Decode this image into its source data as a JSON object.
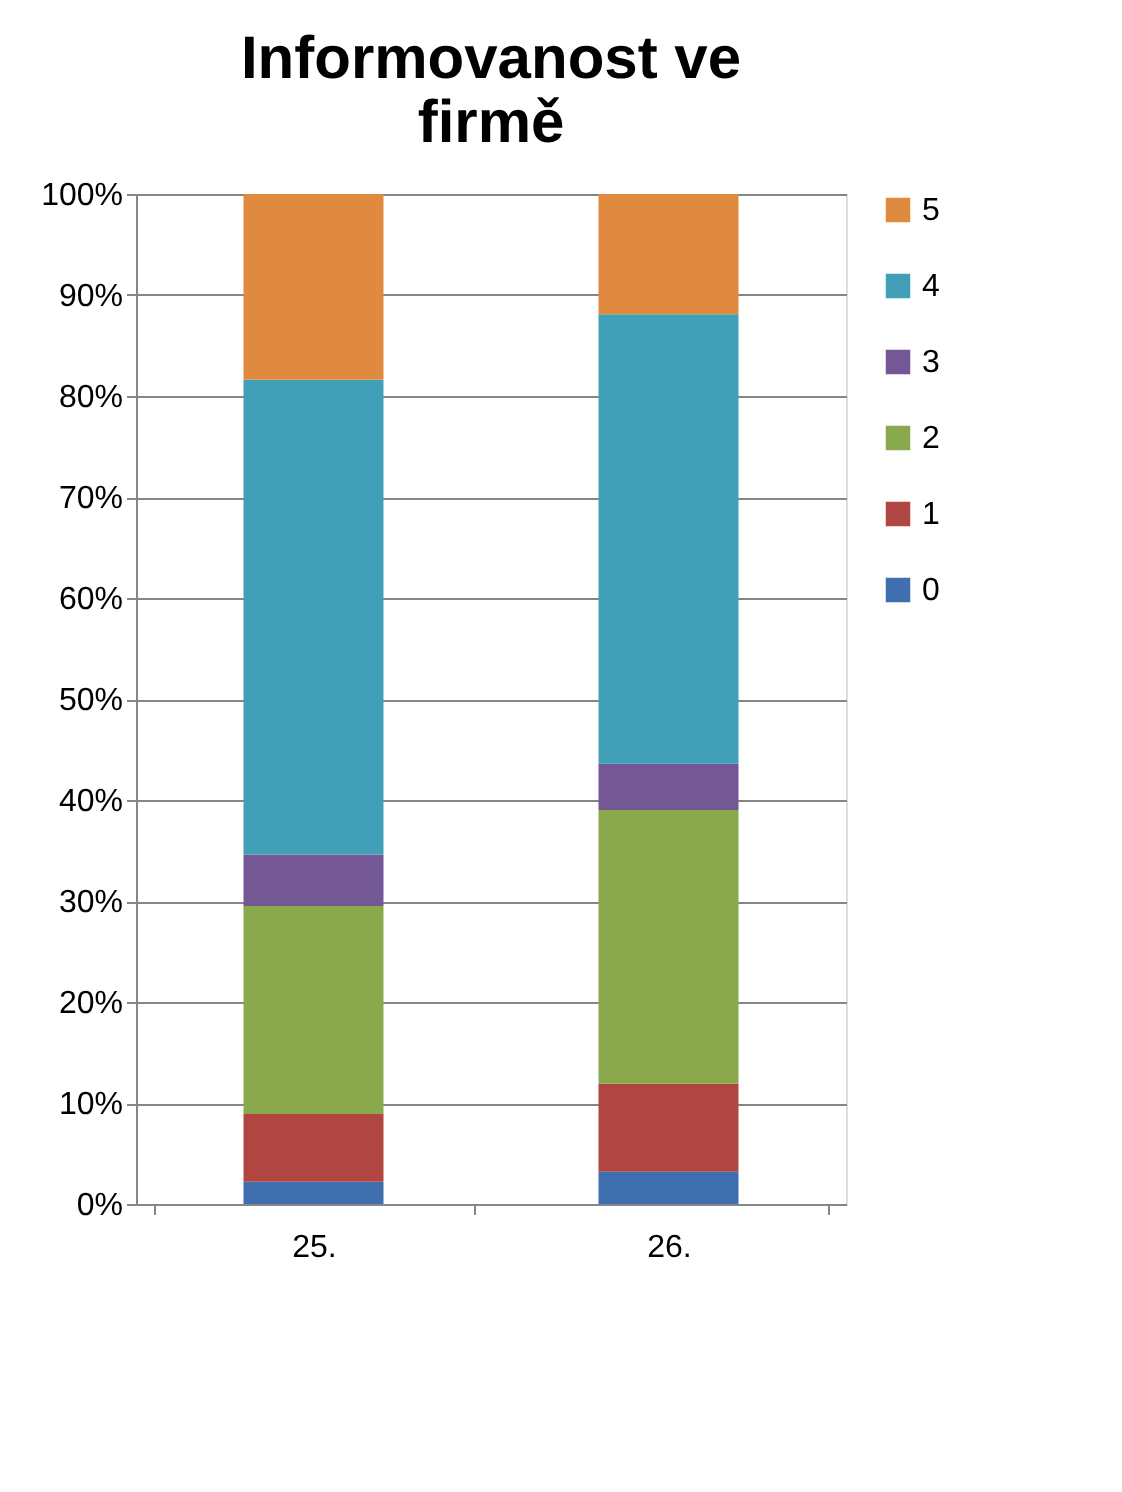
{
  "chart_data": {
    "type": "bar",
    "title": "Informovanost ve firmě",
    "categories": [
      "25.",
      "26."
    ],
    "stacked": true,
    "series": [
      {
        "name": "0",
        "color": "#3f6fae",
        "values": [
          2.2,
          3.2
        ]
      },
      {
        "name": "1",
        "color": "#b04542",
        "values": [
          6.7,
          8.7
        ]
      },
      {
        "name": "2",
        "color": "#8aa84c",
        "values": [
          20.6,
          27.1
        ]
      },
      {
        "name": "3",
        "color": "#735895",
        "values": [
          5.1,
          4.6
        ]
      },
      {
        "name": "4",
        "color": "#41a0b8",
        "values": [
          47.0,
          44.5
        ]
      },
      {
        "name": "5",
        "color": "#e08a40",
        "values": [
          18.4,
          11.9
        ]
      }
    ],
    "ylim": [
      0,
      100
    ],
    "yticks": [
      {
        "value": 0,
        "label": "0%"
      },
      {
        "value": 10,
        "label": "10%"
      },
      {
        "value": 20,
        "label": "20%"
      },
      {
        "value": 30,
        "label": "30%"
      },
      {
        "value": 40,
        "label": "40%"
      },
      {
        "value": 50,
        "label": "50%"
      },
      {
        "value": 60,
        "label": "60%"
      },
      {
        "value": 70,
        "label": "70%"
      },
      {
        "value": 80,
        "label": "80%"
      },
      {
        "value": 90,
        "label": "90%"
      },
      {
        "value": 100,
        "label": "100%"
      }
    ],
    "grid": "y",
    "legend": "right"
  }
}
